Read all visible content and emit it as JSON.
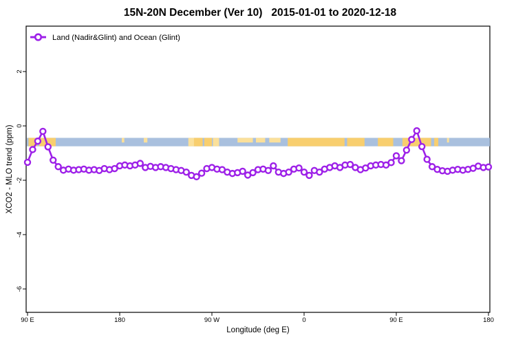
{
  "title": "15N-20N December (Ver 10)   2015-01-01 to 2020-12-18",
  "legend": {
    "label": "Land (Nadir&Glint) and Ocean (Glint)"
  },
  "axes": {
    "x_label": "Longitude (deg E)",
    "y_label": "XCO2 - MLO trend (ppm)",
    "x_ticks": [
      {
        "label": "90 E",
        "value": 90
      },
      {
        "label": "180",
        "value": 180
      },
      {
        "label": "90 W",
        "value": 270
      },
      {
        "label": "0",
        "value": 360
      },
      {
        "label": "90 E",
        "value": 450
      },
      {
        "label": "180",
        "value": 540
      }
    ],
    "y_ticks": [
      {
        "label": "2",
        "value": 2
      },
      {
        "label": "0",
        "value": 0
      },
      {
        "label": "-2",
        "value": -2
      },
      {
        "label": "-4",
        "value": -4
      },
      {
        "label": "-6",
        "value": -6
      }
    ]
  },
  "colors": {
    "series_purple": "#9D20E8",
    "ocean_blue": "#A9C0DE",
    "land_gold": "#F8CE6E",
    "land_pale": "#FBE09A",
    "axis_black": "#000000"
  },
  "chart_data": {
    "type": "line",
    "title": "15N-20N December (Ver 10)   2015-01-01 to 2020-12-18",
    "xlabel": "Longitude (deg E)",
    "ylabel": "XCO2 - MLO trend (ppm)",
    "xlim": [
      90,
      540
    ],
    "ylim": [
      -6.9,
      3.7
    ],
    "grid": false,
    "legend_position": "top-left",
    "x_start_deg": 90,
    "x_step_deg": 5,
    "series": [
      {
        "name": "Land (Nadir&Glint) and Ocean (Glint)",
        "marker": "open-circle",
        "color": "#9D20E8",
        "values": [
          -1.34,
          -0.87,
          -0.56,
          -0.2,
          -0.77,
          -1.26,
          -1.5,
          -1.63,
          -1.59,
          -1.63,
          -1.61,
          -1.59,
          -1.63,
          -1.61,
          -1.64,
          -1.57,
          -1.61,
          -1.57,
          -1.47,
          -1.44,
          -1.47,
          -1.44,
          -1.38,
          -1.53,
          -1.49,
          -1.53,
          -1.5,
          -1.53,
          -1.57,
          -1.61,
          -1.64,
          -1.7,
          -1.82,
          -1.87,
          -1.74,
          -1.57,
          -1.53,
          -1.59,
          -1.61,
          -1.7,
          -1.75,
          -1.72,
          -1.67,
          -1.81,
          -1.72,
          -1.61,
          -1.59,
          -1.64,
          -1.47,
          -1.7,
          -1.75,
          -1.7,
          -1.59,
          -1.55,
          -1.7,
          -1.82,
          -1.64,
          -1.7,
          -1.59,
          -1.53,
          -1.47,
          -1.53,
          -1.44,
          -1.42,
          -1.53,
          -1.61,
          -1.55,
          -1.47,
          -1.44,
          -1.42,
          -1.44,
          -1.35,
          -1.1,
          -1.28,
          -0.89,
          -0.5,
          -0.18,
          -0.76,
          -1.23,
          -1.5,
          -1.6,
          -1.65,
          -1.67,
          -1.63,
          -1.6,
          -1.63,
          -1.6,
          -1.56,
          -1.48,
          -1.53,
          -1.51
        ]
      }
    ],
    "map_strip": {
      "description": "latitude-band land/ocean strip",
      "y_range_ppm": [
        -0.44,
        -0.75
      ],
      "ocean_color": "#A9C0DE",
      "land_color": "#F8CE6E",
      "land_segments_deg": [
        {
          "from": 91,
          "to": 99.5,
          "tone": "land",
          "part": "full"
        },
        {
          "from": 101.5,
          "to": 117.5,
          "tone": "land",
          "part": "full"
        },
        {
          "from": 182,
          "to": 184.5,
          "tone": "pale",
          "part": "top"
        },
        {
          "from": 203.5,
          "to": 207,
          "tone": "pale",
          "part": "top"
        },
        {
          "from": 247,
          "to": 252.5,
          "tone": "pale",
          "part": "full"
        },
        {
          "from": 252.5,
          "to": 261,
          "tone": "land",
          "part": "full"
        },
        {
          "from": 262.5,
          "to": 270,
          "tone": "land",
          "part": "full"
        },
        {
          "from": 271,
          "to": 277,
          "tone": "pale",
          "part": "full"
        },
        {
          "from": 295,
          "to": 310,
          "tone": "pale",
          "part": "top"
        },
        {
          "from": 313,
          "to": 322,
          "tone": "pale",
          "part": "top"
        },
        {
          "from": 326,
          "to": 337,
          "tone": "pale",
          "part": "top"
        },
        {
          "from": 344,
          "to": 399.5,
          "tone": "land",
          "part": "full"
        },
        {
          "from": 402,
          "to": 419,
          "tone": "land",
          "part": "full"
        },
        {
          "from": 432,
          "to": 447,
          "tone": "land",
          "part": "full"
        },
        {
          "from": 456,
          "to": 484,
          "tone": "land",
          "part": "full"
        },
        {
          "from": 487,
          "to": 491,
          "tone": "land",
          "part": "full"
        },
        {
          "from": 499.5,
          "to": 501.5,
          "tone": "pale",
          "part": "top"
        }
      ]
    }
  }
}
